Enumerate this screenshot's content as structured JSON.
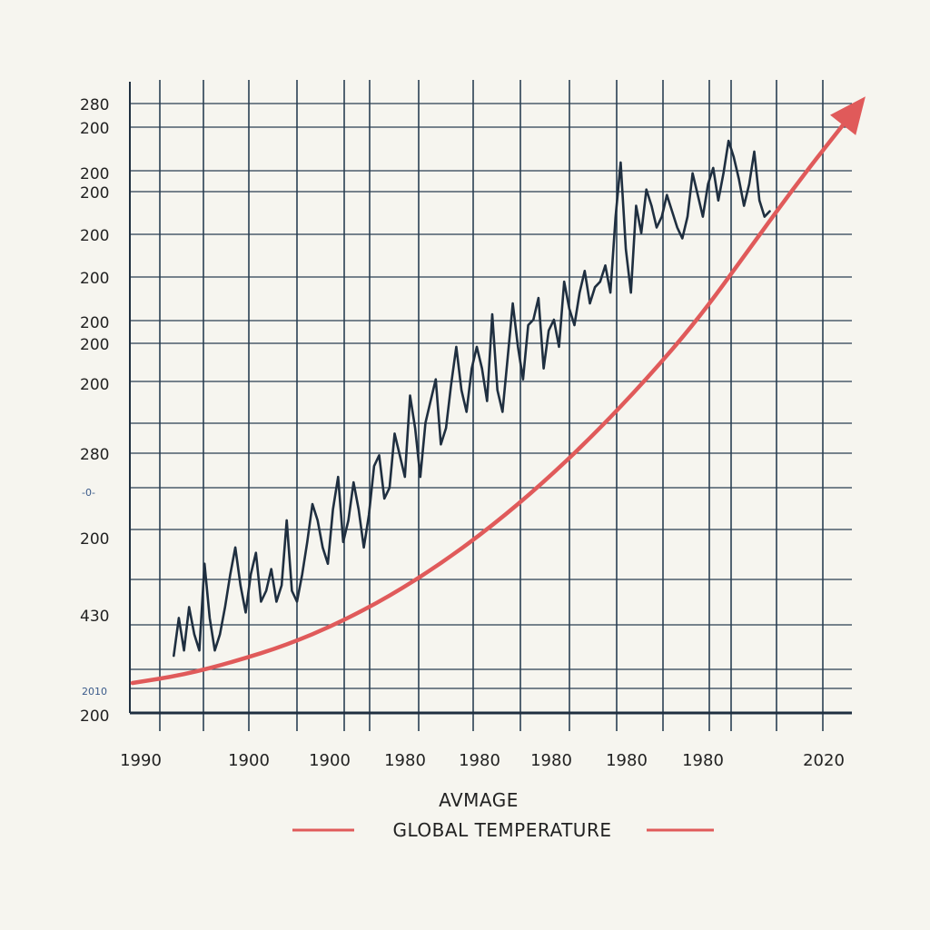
{
  "chart_data": {
    "type": "line",
    "title": "",
    "legend": {
      "title": "AVMAGE",
      "label": "GLOBAL TEMPERATURE",
      "color": "#e05a5a",
      "placement": "bottom-center"
    },
    "y_tick_labels": [
      "280",
      "200",
      "200",
      "200",
      "200",
      "200",
      "200",
      "200",
      "200",
      "280",
      "-0-",
      "200",
      "430",
      "2010",
      "200"
    ],
    "x_tick_labels": [
      "1990",
      "1900",
      "1900",
      "1980",
      "1980",
      "1980",
      "1980",
      "1980",
      "2020"
    ],
    "x_range": [
      1880,
      2020
    ],
    "y_range": [
      0,
      100
    ],
    "grid": true,
    "series": [
      {
        "color": "#1f2f40",
        "x": [
          1888,
          1889,
          1890,
          1891,
          1892,
          1893,
          1894,
          1895,
          1896,
          1897,
          1898,
          1899,
          1900,
          1901,
          1902,
          1903,
          1904,
          1905,
          1906,
          1907,
          1908,
          1909,
          1910,
          1911,
          1912,
          1913,
          1914,
          1915,
          1916,
          1917,
          1918,
          1919,
          1920,
          1921,
          1922,
          1923,
          1924,
          1925,
          1926,
          1927,
          1928,
          1929,
          1930,
          1931,
          1932,
          1933,
          1934,
          1935,
          1936,
          1937,
          1938,
          1939,
          1940,
          1941,
          1942,
          1943,
          1944,
          1945,
          1946,
          1947,
          1948,
          1949,
          1950,
          1951,
          1952,
          1953,
          1954,
          1955,
          1956,
          1957,
          1958,
          1959,
          1960,
          1961,
          1962,
          1963,
          1964,
          1965,
          1966,
          1967,
          1968,
          1969,
          1970,
          1971,
          1972,
          1973,
          1974,
          1975,
          1976,
          1977,
          1978,
          1979,
          1980,
          1981,
          1982,
          1983,
          1984,
          1985,
          1986,
          1987,
          1988,
          1989,
          1990,
          1991,
          1992,
          1993,
          1994,
          1995,
          1996,
          1997,
          1998,
          1999,
          2000,
          2001,
          2002,
          2003,
          2004
        ],
        "values": [
          5,
          12,
          6,
          14,
          9,
          6,
          22,
          12,
          6,
          9,
          14,
          20,
          25,
          18,
          13,
          20,
          24,
          15,
          17,
          21,
          15,
          18,
          30,
          17,
          15,
          20,
          26,
          33,
          30,
          25,
          22,
          32,
          38,
          26,
          30,
          37,
          32,
          25,
          31,
          40,
          42,
          34,
          36,
          46,
          42,
          38,
          53,
          47,
          38,
          48,
          52,
          56,
          44,
          47,
          55,
          62,
          54,
          50,
          58,
          62,
          58,
          52,
          68,
          54,
          50,
          60,
          70,
          62,
          56,
          66,
          67,
          71,
          58,
          65,
          67,
          62,
          74,
          69,
          66,
          72,
          76,
          70,
          73,
          74,
          77,
          72,
          86,
          96,
          80,
          72,
          88,
          83,
          91,
          88,
          84,
          86,
          90,
          87,
          84,
          82,
          86,
          94,
          90,
          86,
          92,
          95,
          89,
          94,
          100,
          97,
          93,
          88,
          92,
          98,
          89,
          86,
          87
        ]
      },
      {
        "color": "#e05a5a",
        "x": [
          1880,
          1890,
          1900,
          1910,
          1920,
          1930,
          1940,
          1950,
          1960,
          1970,
          1980,
          1990,
          2000,
          2010,
          2020
        ],
        "values": [
          0,
          1.5,
          4,
          7,
          11,
          16,
          22,
          29,
          37,
          46,
          56,
          67,
          80,
          93,
          105
        ]
      }
    ]
  }
}
